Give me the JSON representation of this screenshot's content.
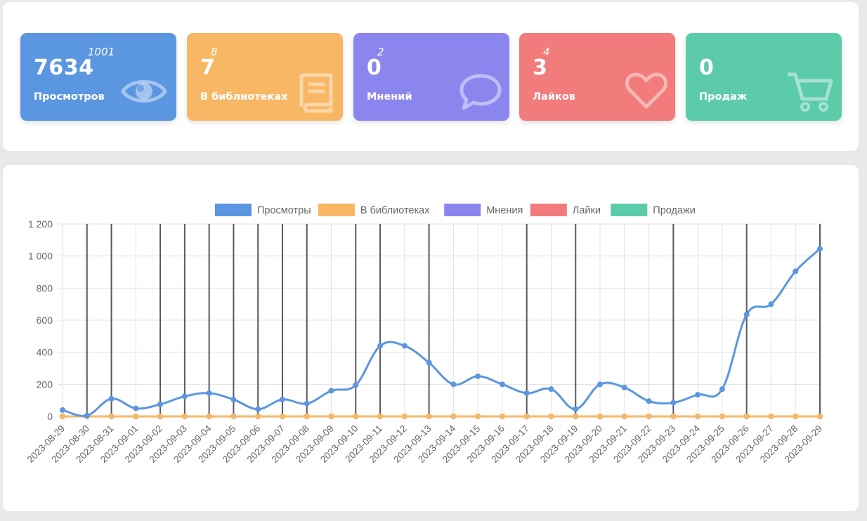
{
  "stats": [
    {
      "value": "7634",
      "extra": "1001",
      "label": "Просмотров",
      "color": "#5b96e0",
      "icon": "eye-icon"
    },
    {
      "value": "7",
      "extra": "8",
      "label": "В библиотеках",
      "color": "#f8b764",
      "icon": "book-icon"
    },
    {
      "value": "0",
      "extra": "2",
      "label": "Мнений",
      "color": "#8b86ee",
      "icon": "comment-icon"
    },
    {
      "value": "3",
      "extra": "4",
      "label": "Лайков",
      "color": "#f27b7b",
      "icon": "heart-icon"
    },
    {
      "value": "0",
      "extra": "",
      "label": "Продаж",
      "color": "#5bcbaa",
      "icon": "cart-icon"
    }
  ],
  "chart_data": {
    "type": "line",
    "x": [
      "2023-08-29",
      "2023-08-30",
      "2023-08-31",
      "2023-09-01",
      "2023-09-02",
      "2023-09-03",
      "2023-09-04",
      "2023-09-05",
      "2023-09-06",
      "2023-09-07",
      "2023-09-08",
      "2023-09-09",
      "2023-09-10",
      "2023-09-11",
      "2023-09-12",
      "2023-09-13",
      "2023-09-14",
      "2023-09-15",
      "2023-09-16",
      "2023-09-17",
      "2023-09-18",
      "2023-09-19",
      "2023-09-20",
      "2023-09-21",
      "2023-09-22",
      "2023-09-23",
      "2023-09-24",
      "2023-09-25",
      "2023-09-26",
      "2023-09-27",
      "2023-09-28",
      "2023-09-29"
    ],
    "series": [
      {
        "name": "Просмотры",
        "color": "#5b96e0",
        "values": [
          40,
          5,
          110,
          50,
          75,
          125,
          145,
          105,
          45,
          105,
          80,
          160,
          195,
          440,
          440,
          335,
          200,
          250,
          200,
          145,
          170,
          45,
          200,
          180,
          95,
          85,
          135,
          170,
          635,
          700,
          905,
          1045
        ]
      },
      {
        "name": "В библиотеках",
        "color": "#f8b764",
        "values": [
          0,
          0,
          0,
          0,
          0,
          0,
          0,
          0,
          0,
          0,
          0,
          0,
          0,
          0,
          0,
          0,
          0,
          0,
          0,
          0,
          0,
          0,
          0,
          0,
          0,
          0,
          0,
          0,
          0,
          0,
          0,
          0
        ]
      },
      {
        "name": "Мнения",
        "color": "#8b86ee",
        "values": [
          0,
          0,
          0,
          0,
          0,
          0,
          0,
          0,
          0,
          0,
          0,
          0,
          0,
          0,
          0,
          0,
          0,
          0,
          0,
          0,
          0,
          0,
          0,
          0,
          0,
          0,
          0,
          0,
          0,
          0,
          0,
          0
        ]
      },
      {
        "name": "Лайки",
        "color": "#f27b7b",
        "values": [
          0,
          0,
          0,
          0,
          0,
          0,
          0,
          0,
          0,
          0,
          0,
          0,
          0,
          0,
          0,
          0,
          0,
          0,
          0,
          0,
          0,
          0,
          0,
          0,
          0,
          0,
          0,
          0,
          0,
          0,
          0,
          0
        ]
      },
      {
        "name": "Продажи",
        "color": "#5bcbaa",
        "values": [
          0,
          0,
          0,
          0,
          0,
          0,
          0,
          0,
          0,
          0,
          0,
          0,
          0,
          0,
          0,
          0,
          0,
          0,
          0,
          0,
          0,
          0,
          0,
          0,
          0,
          0,
          0,
          0,
          0,
          0,
          0,
          0
        ]
      }
    ],
    "ylim": [
      0,
      1200
    ],
    "yticks": [
      "0",
      "200",
      "400",
      "600",
      "800",
      "1 000",
      "1 200"
    ],
    "legend": "top",
    "grid": true,
    "highlighted_dates": [
      "2023-08-30",
      "2023-08-31",
      "2023-09-02",
      "2023-09-03",
      "2023-09-04",
      "2023-09-05",
      "2023-09-06",
      "2023-09-07",
      "2023-09-08",
      "2023-09-10",
      "2023-09-11",
      "2023-09-13",
      "2023-09-17",
      "2023-09-19",
      "2023-09-23",
      "2023-09-26",
      "2023-09-29"
    ],
    "highlight_color": "#555a63"
  }
}
